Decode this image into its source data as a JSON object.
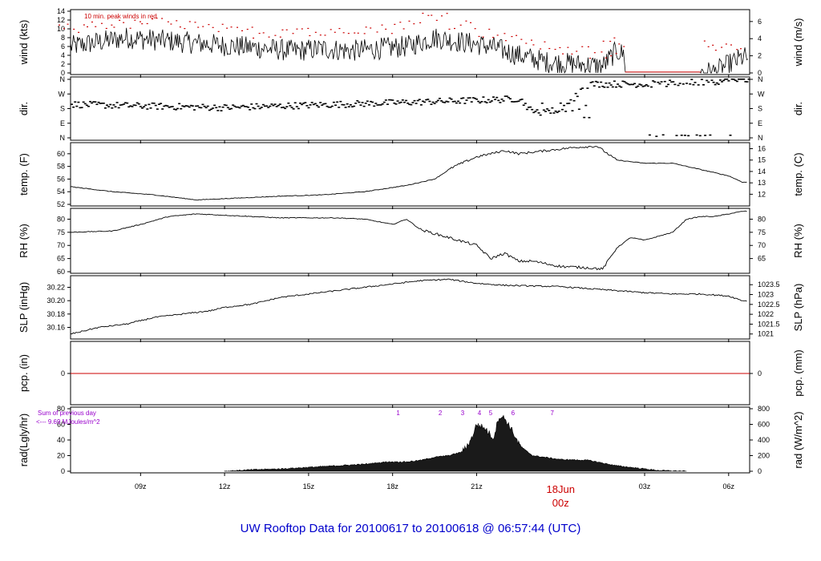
{
  "title": "UW Rooftop Data for 20100617  to  20100618 @ 06:57:44  (UTC)",
  "colors": {
    "title": "#0000cc",
    "peak": "#cc0000",
    "zero_line": "#cc0000",
    "rad_annot": "#9900cc",
    "date_label": "#cc0000"
  },
  "x_axis": {
    "ticks": [
      "09z",
      "12z",
      "15z",
      "18z",
      "21z",
      "03z",
      "06z"
    ],
    "date_label": "18Jun",
    "date_sub": "00z"
  },
  "chart_data": [
    {
      "type": "line",
      "name": "wind",
      "annotation": "10 min. peak winds in red",
      "ylabel_left": "wind (kts)",
      "ylabel_right": "wind (m/s)",
      "left_ticks": [
        "0",
        "2",
        "4",
        "6",
        "8",
        "10",
        "12",
        "14"
      ],
      "right_ticks": [
        "0",
        "2",
        "4",
        "6"
      ],
      "ylim": [
        0,
        14
      ],
      "x": [
        6.5,
        7.5,
        8.5,
        9.5,
        10.5,
        11.5,
        12.5,
        13.5,
        14.5,
        15.5,
        16.5,
        17.5,
        18.5,
        19.5,
        20.5,
        21.5,
        22.5,
        23.5,
        24.5,
        25.5,
        26.0,
        27.5,
        28.5,
        29.5,
        30.5
      ],
      "y": [
        6,
        7,
        8,
        7.5,
        7,
        6.5,
        6,
        5.5,
        5,
        5.5,
        5,
        5.5,
        6,
        8,
        7,
        6,
        4,
        2.5,
        2,
        1.5,
        5,
        0.2,
        0.2,
        0.2,
        3.5
      ],
      "peak_x": [
        6.5,
        7.5,
        8.5,
        9.5,
        10.5,
        11.5,
        12.5,
        13.5,
        14.5,
        15.5,
        16.5,
        17.5,
        18.5,
        19.5,
        20.5,
        21.5,
        22.5,
        23.5,
        24.5,
        25.5,
        26.0,
        29.0,
        30.0
      ],
      "peak_y": [
        10,
        11,
        11,
        11.5,
        11,
        10,
        9.5,
        9,
        10,
        9,
        10,
        10,
        11,
        13,
        11,
        9,
        7.5,
        6,
        5,
        4,
        7,
        7,
        6
      ]
    },
    {
      "type": "scatter",
      "name": "dir",
      "ylabel_left": "dir.",
      "ylabel_right": "dir.",
      "left_ticks": [
        "N",
        "E",
        "S",
        "W",
        "N"
      ],
      "right_ticks": [
        "N",
        "E",
        "S",
        "W",
        "N"
      ]
    },
    {
      "type": "line",
      "name": "temp",
      "ylabel_left": "temp. (F)",
      "ylabel_right": "temp. (C)",
      "left_ticks": [
        "52",
        "54",
        "56",
        "58",
        "60"
      ],
      "right_ticks": [
        "12",
        "13",
        "14",
        "15",
        "16"
      ],
      "ylim": [
        52,
        61.5
      ],
      "x": [
        6.5,
        8,
        9.5,
        11,
        12.5,
        14,
        15.5,
        17,
        18.5,
        19.5,
        20.2,
        21,
        21.5,
        22,
        22.5,
        23.5,
        24.5,
        25.3,
        26,
        27,
        28,
        29,
        30,
        30.5
      ],
      "y": [
        54.8,
        54,
        53.5,
        52.7,
        53,
        53.3,
        53.5,
        54,
        55,
        56,
        58,
        59.5,
        60,
        60.5,
        60,
        60.5,
        61,
        61.2,
        59,
        58.5,
        58.5,
        57.5,
        56.5,
        55.5
      ]
    },
    {
      "type": "line",
      "name": "rh",
      "ylabel_left": "RH (%)",
      "ylabel_right": "RH (%)",
      "left_ticks": [
        "60",
        "65",
        "70",
        "75",
        "80"
      ],
      "right_ticks": [
        "65",
        "70",
        "75",
        "80"
      ],
      "ylim": [
        60,
        83.5
      ],
      "x": [
        6.5,
        8,
        9,
        10,
        11,
        12,
        13,
        14,
        15,
        16,
        17,
        18,
        18.5,
        19,
        20,
        21,
        21.5,
        22,
        22.5,
        23,
        24,
        25,
        25.5,
        26,
        26.5,
        27,
        28,
        28.5,
        29,
        29.5,
        30,
        30.5
      ],
      "y": [
        75,
        75.5,
        78,
        81,
        82,
        81.5,
        81,
        80.5,
        80.5,
        80.5,
        80,
        78,
        80,
        76,
        73,
        70,
        65,
        67,
        64,
        64,
        62,
        61.5,
        61,
        69,
        73,
        72,
        75,
        80,
        81,
        81,
        82,
        83
      ]
    },
    {
      "type": "line",
      "name": "slp",
      "ylabel_left": "SLP (inHg)",
      "ylabel_right": "SLP (hPa)",
      "left_ticks": [
        "30.16",
        "30.18",
        "30.20",
        "30.22"
      ],
      "right_ticks": [
        "1021",
        "1021.5",
        "1022",
        "1022.5",
        "1023",
        "1023.5"
      ],
      "ylim": [
        30.145,
        30.235
      ],
      "x": [
        6.5,
        7.5,
        8.5,
        9.5,
        10.5,
        11.5,
        12,
        13,
        14,
        15,
        16,
        17,
        18,
        19,
        20,
        21,
        22,
        23,
        24,
        25,
        26,
        27,
        28,
        29,
        30,
        30.5
      ],
      "y": [
        30.15,
        30.16,
        30.165,
        30.175,
        30.18,
        30.185,
        30.19,
        30.195,
        30.205,
        30.21,
        30.215,
        30.22,
        30.225,
        30.23,
        30.232,
        30.226,
        30.223,
        30.222,
        30.221,
        30.218,
        30.215,
        30.212,
        30.21,
        30.21,
        30.207,
        30.2
      ]
    },
    {
      "type": "line",
      "name": "pcp",
      "ylabel_left": "pcp. (in)",
      "ylabel_right": "pcp. (mm)",
      "left_ticks": [
        "0"
      ],
      "right_ticks": [
        "0"
      ],
      "value": 0
    },
    {
      "type": "area",
      "name": "rad",
      "ylabel_left": "rad(Lgly/hr)",
      "ylabel_right": "rad (W/m^2)",
      "annotation_line1": "Sum of previous day",
      "annotation_line2": "<--- 9.69 MJoules/m^2",
      "left_ticks": [
        "0",
        "20",
        "40",
        "60",
        "80"
      ],
      "right_ticks": [
        "0",
        "200",
        "400",
        "600",
        "800"
      ],
      "ylim": [
        0,
        80
      ],
      "markers": [
        "1",
        "2",
        "3",
        "4",
        "5",
        "6",
        "7"
      ],
      "x": [
        12,
        13,
        14,
        15,
        16,
        17,
        17.8,
        18.5,
        19,
        19.5,
        20,
        20.5,
        20.8,
        21,
        21.3,
        21.6,
        21.8,
        22,
        22.3,
        22.5,
        22.7,
        23,
        24,
        25,
        26,
        27,
        27.5,
        28.5
      ],
      "y": [
        0,
        2,
        3,
        5,
        7,
        9,
        12,
        12,
        14,
        18,
        20,
        25,
        40,
        60,
        55,
        42,
        70,
        68,
        50,
        35,
        28,
        20,
        15,
        14,
        7,
        3,
        1,
        0
      ]
    }
  ]
}
